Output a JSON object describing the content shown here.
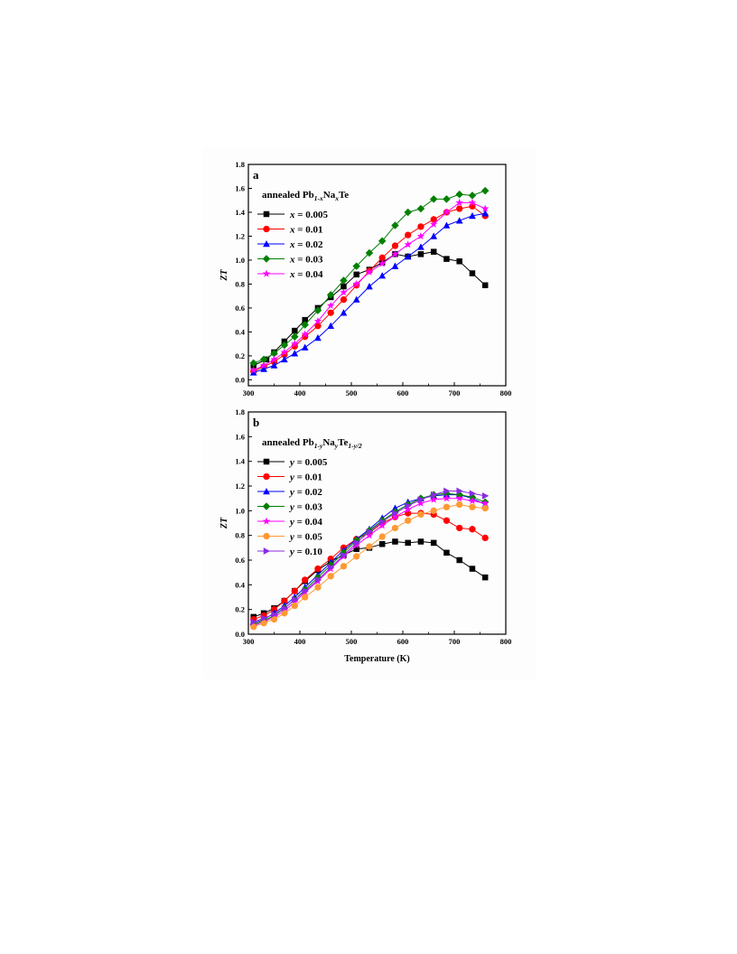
{
  "chart_data": [
    {
      "type": "line",
      "panel_label": "a",
      "annotation": {
        "prefix": "annealed Pb",
        "sub1": "1-x",
        "mid": "Na",
        "sub2": "x",
        "suffix": "Te"
      },
      "xlabel": "",
      "ylabel": "ZT",
      "xlim": [
        300,
        800
      ],
      "ylim": [
        -0.05,
        1.8
      ],
      "xticks": [
        "300",
        "400",
        "500",
        "600",
        "700",
        "800"
      ],
      "yticks": [
        "0.0",
        "0.2",
        "0.4",
        "0.6",
        "0.8",
        "1.0",
        "1.2",
        "1.4",
        "1.6",
        "1.8"
      ],
      "legend_position": "top-left",
      "series": [
        {
          "name": "x = 0.005",
          "var": "x",
          "label_value": "= 0.005",
          "color": "#000000",
          "marker": "square",
          "x": [
            310,
            335,
            350,
            370,
            390,
            410,
            435,
            460,
            485,
            510,
            535,
            560,
            585,
            610,
            635,
            660,
            685,
            710,
            735,
            760
          ],
          "y": [
            0.12,
            0.17,
            0.23,
            0.32,
            0.41,
            0.5,
            0.6,
            0.69,
            0.78,
            0.88,
            0.92,
            0.98,
            1.05,
            1.03,
            1.05,
            1.07,
            1.01,
            0.99,
            0.89,
            0.79
          ]
        },
        {
          "name": "x = 0.01",
          "var": "x",
          "label_value": "= 0.01",
          "color": "#ff0000",
          "marker": "circle",
          "x": [
            310,
            330,
            350,
            370,
            390,
            410,
            435,
            460,
            485,
            510,
            535,
            560,
            585,
            610,
            635,
            660,
            685,
            710,
            735,
            760
          ],
          "y": [
            0.07,
            0.11,
            0.15,
            0.21,
            0.28,
            0.36,
            0.45,
            0.56,
            0.67,
            0.79,
            0.91,
            1.02,
            1.12,
            1.21,
            1.28,
            1.34,
            1.4,
            1.43,
            1.45,
            1.37
          ]
        },
        {
          "name": "x = 0.02",
          "var": "x",
          "label_value": "= 0.02",
          "color": "#0000ff",
          "marker": "triangle",
          "x": [
            310,
            330,
            350,
            370,
            390,
            410,
            435,
            460,
            485,
            510,
            535,
            560,
            585,
            610,
            635,
            660,
            685,
            710,
            735,
            760
          ],
          "y": [
            0.06,
            0.09,
            0.12,
            0.17,
            0.22,
            0.27,
            0.35,
            0.45,
            0.56,
            0.67,
            0.78,
            0.87,
            0.95,
            1.03,
            1.11,
            1.2,
            1.29,
            1.33,
            1.37,
            1.39
          ]
        },
        {
          "name": "x = 0.03",
          "var": "x",
          "label_value": "= 0.03",
          "color": "#008000",
          "marker": "diamond",
          "x": [
            310,
            330,
            350,
            370,
            390,
            410,
            435,
            460,
            485,
            510,
            535,
            560,
            585,
            610,
            635,
            660,
            685,
            710,
            735,
            760
          ],
          "y": [
            0.14,
            0.17,
            0.22,
            0.29,
            0.36,
            0.46,
            0.58,
            0.71,
            0.83,
            0.95,
            1.06,
            1.16,
            1.29,
            1.4,
            1.43,
            1.51,
            1.51,
            1.55,
            1.54,
            1.58
          ]
        },
        {
          "name": "x = 0.04",
          "var": "x",
          "label_value": "= 0.04",
          "color": "#ff00ff",
          "marker": "star",
          "x": [
            310,
            330,
            350,
            370,
            390,
            410,
            435,
            460,
            485,
            510,
            535,
            560,
            585,
            610,
            635,
            660,
            685,
            710,
            735,
            760
          ],
          "y": [
            0.08,
            0.12,
            0.17,
            0.23,
            0.3,
            0.38,
            0.49,
            0.62,
            0.73,
            0.8,
            0.9,
            0.97,
            1.05,
            1.13,
            1.2,
            1.3,
            1.4,
            1.48,
            1.48,
            1.43
          ]
        }
      ]
    },
    {
      "type": "line",
      "panel_label": "b",
      "annotation": {
        "prefix": "annealed Pb",
        "sub1": "1-y",
        "mid": "Na",
        "sub2": "y",
        "suffix": "Te",
        "sub3": "1-y/2"
      },
      "xlabel": "Temperature (K)",
      "ylabel": "ZT",
      "xlim": [
        300,
        800
      ],
      "ylim": [
        0,
        1.8
      ],
      "xticks": [
        "300",
        "400",
        "500",
        "600",
        "700",
        "800"
      ],
      "yticks": [
        "0.0",
        "0.2",
        "0.4",
        "0.6",
        "0.8",
        "1.0",
        "1.2",
        "1.4",
        "1.6",
        "1.8"
      ],
      "legend_position": "top-left",
      "series": [
        {
          "name": "y = 0.005",
          "var": "y",
          "label_value": "= 0.005",
          "color": "#000000",
          "marker": "square",
          "x": [
            310,
            330,
            350,
            370,
            390,
            410,
            435,
            460,
            485,
            510,
            535,
            560,
            585,
            610,
            635,
            660,
            685,
            710,
            735,
            760
          ],
          "y": [
            0.14,
            0.17,
            0.21,
            0.27,
            0.35,
            0.43,
            0.52,
            0.59,
            0.64,
            0.69,
            0.7,
            0.73,
            0.75,
            0.74,
            0.75,
            0.74,
            0.66,
            0.6,
            0.53,
            0.46
          ]
        },
        {
          "name": "y = 0.01",
          "var": "y",
          "label_value": "= 0.01",
          "color": "#ff0000",
          "marker": "circle",
          "x": [
            310,
            330,
            350,
            370,
            390,
            410,
            435,
            460,
            485,
            510,
            535,
            560,
            585,
            610,
            635,
            660,
            685,
            710,
            735,
            760
          ],
          "y": [
            0.12,
            0.15,
            0.2,
            0.27,
            0.35,
            0.44,
            0.53,
            0.61,
            0.7,
            0.77,
            0.82,
            0.9,
            0.95,
            0.98,
            0.98,
            0.97,
            0.92,
            0.86,
            0.85,
            0.78
          ]
        },
        {
          "name": "y = 0.02",
          "var": "y",
          "label_value": "= 0.02",
          "color": "#0000ff",
          "marker": "triangle",
          "x": [
            310,
            330,
            350,
            370,
            390,
            410,
            435,
            460,
            485,
            510,
            535,
            560,
            585,
            610,
            635,
            660,
            685,
            710,
            735,
            760
          ],
          "y": [
            0.09,
            0.12,
            0.17,
            0.23,
            0.3,
            0.38,
            0.48,
            0.58,
            0.68,
            0.77,
            0.85,
            0.94,
            1.02,
            1.07,
            1.1,
            1.12,
            1.13,
            1.13,
            1.1,
            1.05
          ]
        },
        {
          "name": "y = 0.03",
          "var": "y",
          "label_value": "= 0.03",
          "color": "#008000",
          "marker": "diamond",
          "x": [
            310,
            330,
            350,
            370,
            390,
            410,
            435,
            460,
            485,
            510,
            535,
            560,
            585,
            610,
            635,
            660,
            685,
            710,
            735,
            760
          ],
          "y": [
            0.08,
            0.11,
            0.15,
            0.21,
            0.28,
            0.36,
            0.46,
            0.56,
            0.66,
            0.76,
            0.84,
            0.92,
            0.99,
            1.05,
            1.1,
            1.13,
            1.14,
            1.13,
            1.11,
            1.07
          ]
        },
        {
          "name": "y = 0.04",
          "var": "y",
          "label_value": "= 0.04",
          "color": "#ff00ff",
          "marker": "star",
          "x": [
            310,
            330,
            350,
            370,
            390,
            410,
            435,
            460,
            485,
            510,
            535,
            560,
            585,
            610,
            635,
            660,
            685,
            710,
            735,
            760
          ],
          "y": [
            0.07,
            0.1,
            0.14,
            0.19,
            0.26,
            0.34,
            0.43,
            0.53,
            0.63,
            0.72,
            0.8,
            0.88,
            0.95,
            1.01,
            1.06,
            1.09,
            1.1,
            1.1,
            1.08,
            1.06
          ]
        },
        {
          "name": "y = 0.05",
          "var": "y",
          "label_value": "= 0.05",
          "color": "#ff9933",
          "marker": "circle",
          "x": [
            310,
            330,
            350,
            370,
            390,
            410,
            435,
            460,
            485,
            510,
            535,
            560,
            585,
            610,
            635,
            660,
            685,
            710,
            735,
            760
          ],
          "y": [
            0.06,
            0.09,
            0.12,
            0.17,
            0.23,
            0.3,
            0.38,
            0.47,
            0.55,
            0.63,
            0.71,
            0.79,
            0.86,
            0.92,
            0.97,
            1.0,
            1.03,
            1.05,
            1.03,
            1.02
          ]
        },
        {
          "name": "y = 0.10",
          "var": "y",
          "label_value": "= 0.10",
          "color": "#8a2be2",
          "marker": "triangle-right",
          "x": [
            310,
            330,
            350,
            370,
            390,
            410,
            435,
            460,
            485,
            510,
            535,
            560,
            585,
            610,
            635,
            660,
            685,
            710,
            735,
            760
          ],
          "y": [
            0.1,
            0.13,
            0.16,
            0.21,
            0.28,
            0.35,
            0.44,
            0.54,
            0.64,
            0.74,
            0.83,
            0.91,
            0.98,
            1.04,
            1.09,
            1.13,
            1.16,
            1.16,
            1.14,
            1.12
          ]
        }
      ]
    }
  ]
}
